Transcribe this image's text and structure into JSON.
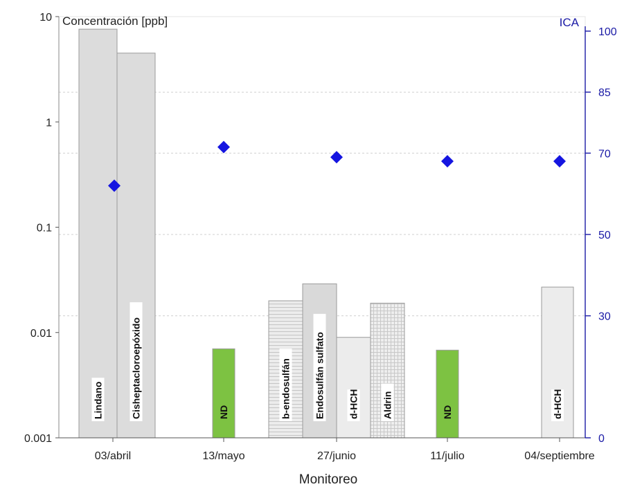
{
  "chart_data": {
    "type": "bar",
    "xlabel": "Monitoreo",
    "ylabel": "Concentración [ppb]",
    "y2label": "ICA",
    "yscale": "log",
    "ylim": [
      0.001,
      10
    ],
    "y2lim": [
      0,
      100
    ],
    "y_ticks": [
      "0.001",
      "0.01",
      "0.1",
      "1",
      "10"
    ],
    "y2_ticks": [
      "0",
      "30",
      "50",
      "70",
      "85",
      "100"
    ],
    "y2_gridlines": [
      30,
      50,
      70,
      85
    ],
    "categories": [
      "03/abril",
      "13/mayo",
      "27/junio",
      "11/julio",
      "04/septiembre"
    ],
    "bars": [
      {
        "category": "03/abril",
        "label": "Lindano",
        "value": 7.6,
        "color": "#dcdcdc",
        "pattern": "none"
      },
      {
        "category": "03/abril",
        "label": "Cisheptacloroepóxido",
        "value": 4.5,
        "color": "#dcdcdc",
        "pattern": "none"
      },
      {
        "category": "13/mayo",
        "label": "ND",
        "value": 0.007,
        "color": "#7dc242",
        "pattern": "none"
      },
      {
        "category": "27/junio",
        "label": "b-endosulfán",
        "value": 0.02,
        "color": "#e6e6e6",
        "pattern": "hlines"
      },
      {
        "category": "27/junio",
        "label": "Endosulfán sulfato",
        "value": 0.029,
        "color": "#d9d9d9",
        "pattern": "none"
      },
      {
        "category": "27/junio",
        "label": "d-HCH",
        "value": 0.009,
        "color": "#ececec",
        "pattern": "none"
      },
      {
        "category": "27/junio",
        "label": "Aldrin",
        "value": 0.019,
        "color": "#e6e6e6",
        "pattern": "grid"
      },
      {
        "category": "11/julio",
        "label": "ND",
        "value": 0.0068,
        "color": "#7dc242",
        "pattern": "none"
      },
      {
        "category": "04/septiembre",
        "label": "d-HCH",
        "value": 0.027,
        "color": "#ececec",
        "pattern": "none"
      }
    ],
    "ica_series": {
      "color": "#1515e0",
      "marker": "diamond",
      "points": [
        {
          "category": "03/abril",
          "value": 62
        },
        {
          "category": "13/mayo",
          "value": 71.5
        },
        {
          "category": "27/junio",
          "value": 69
        },
        {
          "category": "11/julio",
          "value": 68
        },
        {
          "category": "04/septiembre",
          "value": 68
        }
      ]
    },
    "grid": "y2-dashed",
    "legend": "none"
  }
}
